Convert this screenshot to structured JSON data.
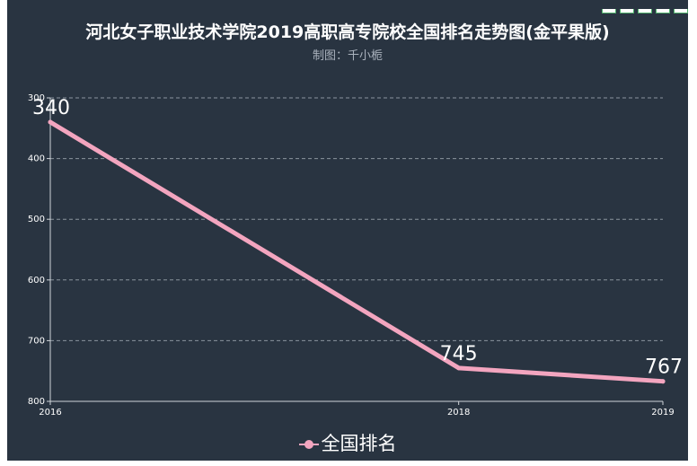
{
  "title": "河北女子职业技术学院2019高职高专院校全国排名走势图(金平果版)",
  "subtitle": "制图：千小栀",
  "colors": {
    "background": "#293441",
    "series": "#f3a5bf",
    "grid": "#8a949e",
    "text": "#ffffff"
  },
  "chart_data": {
    "type": "line",
    "title": "河北女子职业技术学院2019高职高专院校全国排名走势图(金平果版)",
    "subtitle": "制图：千小栀",
    "x": [
      "2016",
      "2018",
      "2019"
    ],
    "series": [
      {
        "name": "全国排名",
        "values": [
          340,
          745,
          767
        ]
      }
    ],
    "yticks": [
      300,
      400,
      500,
      600,
      700,
      800
    ],
    "ylim": [
      300,
      800
    ],
    "y_inverted": true,
    "grid": "horizontal-dashed",
    "legend": "bottom-center",
    "data_labels": true
  }
}
